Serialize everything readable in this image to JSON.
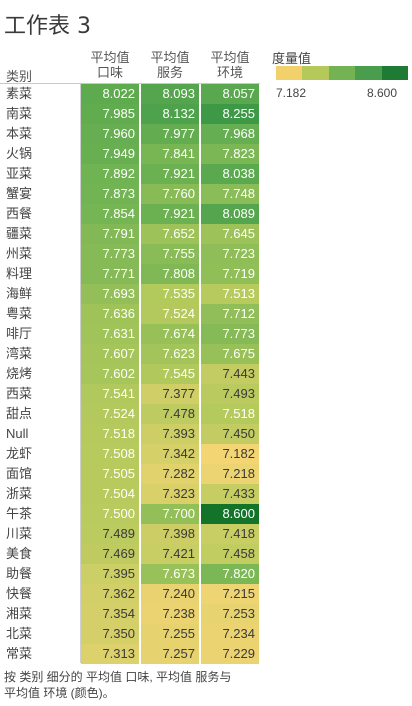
{
  "title": "工作表 3",
  "row_header": "类别",
  "caption_line1": "按 类别 细分的 平均值 口味, 平均值 服务与",
  "caption_line2": "平均值 环境 (颜色)。",
  "legend": {
    "title": "度量值",
    "min_label": "7.182",
    "max_label": "8.600",
    "colors": [
      "#f2d06b",
      "#b5c95a",
      "#74b354",
      "#4a9d4c",
      "#1f7a34"
    ]
  },
  "colors": {
    "text_dark": "#3a3a3a",
    "text_light": "#ffffff"
  },
  "chart_data": {
    "type": "table",
    "columns": [
      "平均值\n口味",
      "平均值\n服务",
      "平均值\n环境"
    ],
    "color_range": [
      7.182,
      8.6
    ],
    "rows": [
      {
        "category": "素菜",
        "values": [
          8.022,
          8.093,
          8.057
        ]
      },
      {
        "category": "南菜",
        "values": [
          7.985,
          8.132,
          8.255
        ]
      },
      {
        "category": "本菜",
        "values": [
          7.96,
          7.977,
          7.968
        ]
      },
      {
        "category": "火锅",
        "values": [
          7.949,
          7.841,
          7.823
        ]
      },
      {
        "category": "亚菜",
        "values": [
          7.892,
          7.921,
          8.038
        ]
      },
      {
        "category": "蟹宴",
        "values": [
          7.873,
          7.76,
          7.748
        ]
      },
      {
        "category": "西餐",
        "values": [
          7.854,
          7.921,
          8.089
        ]
      },
      {
        "category": "疆菜",
        "values": [
          7.791,
          7.652,
          7.645
        ]
      },
      {
        "category": "州菜",
        "values": [
          7.773,
          7.755,
          7.723
        ]
      },
      {
        "category": "料理",
        "values": [
          7.771,
          7.808,
          7.719
        ]
      },
      {
        "category": "海鲜",
        "values": [
          7.693,
          7.535,
          7.513
        ]
      },
      {
        "category": "粤菜",
        "values": [
          7.636,
          7.524,
          7.712
        ]
      },
      {
        "category": "啡厅",
        "values": [
          7.631,
          7.674,
          7.773
        ]
      },
      {
        "category": "湾菜",
        "values": [
          7.607,
          7.623,
          7.675
        ]
      },
      {
        "category": "烧烤",
        "values": [
          7.602,
          7.545,
          7.443
        ]
      },
      {
        "category": "西菜",
        "values": [
          7.541,
          7.377,
          7.493
        ]
      },
      {
        "category": "甜点",
        "values": [
          7.524,
          7.478,
          7.518
        ]
      },
      {
        "category": "Null",
        "values": [
          7.518,
          7.393,
          7.45
        ]
      },
      {
        "category": "龙虾",
        "values": [
          7.508,
          7.342,
          7.182
        ]
      },
      {
        "category": "面馆",
        "values": [
          7.505,
          7.282,
          7.218
        ]
      },
      {
        "category": "浙菜",
        "values": [
          7.504,
          7.323,
          7.433
        ]
      },
      {
        "category": "午茶",
        "values": [
          7.5,
          7.7,
          8.6
        ]
      },
      {
        "category": "川菜",
        "values": [
          7.489,
          7.398,
          7.418
        ]
      },
      {
        "category": "美食",
        "values": [
          7.469,
          7.421,
          7.458
        ]
      },
      {
        "category": "助餐",
        "values": [
          7.395,
          7.673,
          7.82
        ]
      },
      {
        "category": "快餐",
        "values": [
          7.362,
          7.24,
          7.215
        ]
      },
      {
        "category": "湘菜",
        "values": [
          7.354,
          7.238,
          7.253
        ]
      },
      {
        "category": "北菜",
        "values": [
          7.35,
          7.255,
          7.234
        ]
      },
      {
        "category": "常菜",
        "values": [
          7.313,
          7.257,
          7.229
        ]
      }
    ]
  }
}
